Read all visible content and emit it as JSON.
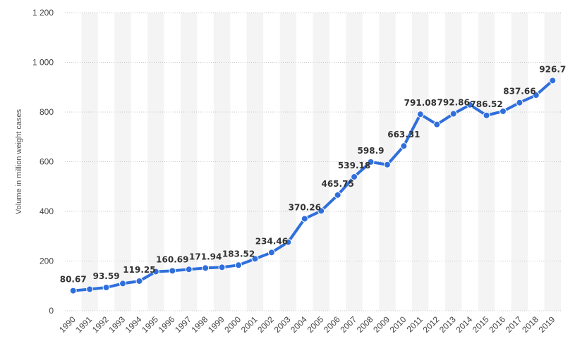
{
  "chart_data": {
    "type": "line",
    "ylabel": "Volume in million weight cases",
    "xlabel": "",
    "ylim": [
      0,
      1200
    ],
    "yticks": [
      0,
      200,
      400,
      600,
      800,
      1000,
      1200
    ],
    "ytick_labels": [
      "0",
      "200",
      "400",
      "600",
      "800",
      "1 000",
      "1 200"
    ],
    "grid": true,
    "color": "#2f6fdc",
    "categories": [
      "1990",
      "1991",
      "1992",
      "1993",
      "1994",
      "1995",
      "1996",
      "1997",
      "1998",
      "1999",
      "2000",
      "2001",
      "2002",
      "2003",
      "2004",
      "2005",
      "2006",
      "2007",
      "2008",
      "2009",
      "2010",
      "2011",
      "2012",
      "2013",
      "2014",
      "2015",
      "2016",
      "2017",
      "2018",
      "2019"
    ],
    "values": [
      80.67,
      86.5,
      93.59,
      109.5,
      119.25,
      157.5,
      160.69,
      166.5,
      171.94,
      175,
      183.52,
      209,
      234.46,
      276,
      370.26,
      402,
      465.75,
      539.18,
      598.9,
      588,
      663.31,
      791.08,
      750,
      792.86,
      829,
      786.52,
      803,
      837.66,
      868,
      926.7
    ],
    "data_labels": [
      {
        "index": 0,
        "text": "80.67"
      },
      {
        "index": 2,
        "text": "93.59"
      },
      {
        "index": 4,
        "text": "119.25"
      },
      {
        "index": 6,
        "text": "160.69"
      },
      {
        "index": 8,
        "text": "171.94"
      },
      {
        "index": 10,
        "text": "183.52"
      },
      {
        "index": 12,
        "text": "234.46"
      },
      {
        "index": 14,
        "text": "370.26"
      },
      {
        "index": 16,
        "text": "465.75"
      },
      {
        "index": 17,
        "text": "539.18"
      },
      {
        "index": 18,
        "text": "598.9"
      },
      {
        "index": 20,
        "text": "663.31"
      },
      {
        "index": 21,
        "text": "791.08"
      },
      {
        "index": 23,
        "text": "792.86"
      },
      {
        "index": 25,
        "text": "786.52"
      },
      {
        "index": 27,
        "text": "837.66"
      },
      {
        "index": 29,
        "text": "926.7"
      }
    ]
  }
}
